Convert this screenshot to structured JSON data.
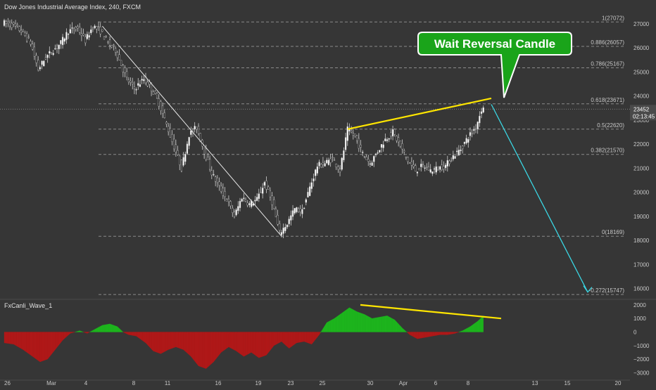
{
  "colors": {
    "background": "#363636",
    "up_candle": "#ffffff",
    "down_candle": "#1c1c1c",
    "wick": "#d0d0d0",
    "fib_line": "#8a8a8a",
    "trend_line": "#ffe600",
    "projection_arrow": "#3ad7e4",
    "callout_fill": "#1aa41a",
    "callout_text": "#ffffff",
    "oscillator_positive": "#1db51d",
    "oscillator_negative": "#b01818",
    "price_tag_bg": "#4a4a4a",
    "axis_text": "#c8c8c8"
  },
  "chart_data": [
    {
      "type": "candlestick",
      "title": "Dow Jones Industrial Average Index, 240, FXCM",
      "x_ticks": [
        "26",
        "Mar",
        "4",
        "8",
        "11",
        "16",
        "19",
        "23",
        "25",
        "30",
        "Apr",
        "6",
        "8",
        "13",
        "15",
        "20"
      ],
      "y_ticks": [
        27000,
        26000,
        25000,
        24000,
        23000,
        22000,
        21000,
        20000,
        19000,
        18000,
        17000,
        16000
      ],
      "ylim": [
        15500,
        27500
      ],
      "last_price": "23452",
      "countdown": "02:13:45",
      "fib_levels": [
        {
          "label": "1(27072)",
          "value": 27072
        },
        {
          "label": "0.886(26057)",
          "value": 26057
        },
        {
          "label": "0.786(25167)",
          "value": 25167
        },
        {
          "label": "0.618(23671)",
          "value": 23671
        },
        {
          "label": "0.5(22620)",
          "value": 22620
        },
        {
          "label": "0.382(21570)",
          "value": 21570
        },
        {
          "label": "0(18169)",
          "value": 18169
        },
        {
          "label": "-0.272(15747)",
          "value": 15747
        }
      ],
      "price_path": [
        {
          "t": 0,
          "v": 27050
        },
        {
          "t": 5,
          "v": 26950
        },
        {
          "t": 10,
          "v": 26700
        },
        {
          "t": 15,
          "v": 26200
        },
        {
          "t": 19,
          "v": 25100
        },
        {
          "t": 23,
          "v": 25600
        },
        {
          "t": 27,
          "v": 25900
        },
        {
          "t": 31,
          "v": 26200
        },
        {
          "t": 35,
          "v": 26700
        },
        {
          "t": 40,
          "v": 26800
        },
        {
          "t": 44,
          "v": 26300
        },
        {
          "t": 48,
          "v": 26900
        },
        {
          "t": 52,
          "v": 26700
        },
        {
          "t": 56,
          "v": 26200
        },
        {
          "t": 60,
          "v": 25900
        },
        {
          "t": 63,
          "v": 25300
        },
        {
          "t": 66,
          "v": 24700
        },
        {
          "t": 70,
          "v": 24300
        },
        {
          "t": 75,
          "v": 24700
        },
        {
          "t": 79,
          "v": 24300
        },
        {
          "t": 83,
          "v": 23700
        },
        {
          "t": 87,
          "v": 22800
        },
        {
          "t": 91,
          "v": 21900
        },
        {
          "t": 95,
          "v": 21000
        },
        {
          "t": 99,
          "v": 22400
        },
        {
          "t": 103,
          "v": 22700
        },
        {
          "t": 107,
          "v": 21700
        },
        {
          "t": 111,
          "v": 20800
        },
        {
          "t": 115,
          "v": 20200
        },
        {
          "t": 119,
          "v": 19700
        },
        {
          "t": 123,
          "v": 19000
        },
        {
          "t": 127,
          "v": 19800
        },
        {
          "t": 131,
          "v": 19500
        },
        {
          "t": 135,
          "v": 19700
        },
        {
          "t": 139,
          "v": 20400
        },
        {
          "t": 143,
          "v": 19600
        },
        {
          "t": 147,
          "v": 18300
        },
        {
          "t": 151,
          "v": 18700
        },
        {
          "t": 155,
          "v": 19300
        },
        {
          "t": 159,
          "v": 19200
        },
        {
          "t": 163,
          "v": 20200
        },
        {
          "t": 167,
          "v": 21100
        },
        {
          "t": 171,
          "v": 21200
        },
        {
          "t": 175,
          "v": 21400
        },
        {
          "t": 179,
          "v": 20900
        },
        {
          "t": 183,
          "v": 22600
        },
        {
          "t": 187,
          "v": 22300
        },
        {
          "t": 191,
          "v": 21600
        },
        {
          "t": 195,
          "v": 21200
        },
        {
          "t": 199,
          "v": 21700
        },
        {
          "t": 203,
          "v": 22200
        },
        {
          "t": 207,
          "v": 22500
        },
        {
          "t": 211,
          "v": 21900
        },
        {
          "t": 215,
          "v": 21300
        },
        {
          "t": 219,
          "v": 20900
        },
        {
          "t": 223,
          "v": 21100
        },
        {
          "t": 227,
          "v": 20900
        },
        {
          "t": 231,
          "v": 21000
        },
        {
          "t": 235,
          "v": 21100
        },
        {
          "t": 239,
          "v": 21500
        },
        {
          "t": 243,
          "v": 21800
        },
        {
          "t": 247,
          "v": 22300
        },
        {
          "t": 251,
          "v": 22700
        },
        {
          "t": 254,
          "v": 23450
        }
      ],
      "annotations": {
        "callout": "Wait Reversal Candle"
      }
    },
    {
      "type": "area",
      "title": "FxCanli_Wave_1",
      "y_ticks": [
        2000,
        1000,
        0,
        -1000,
        -2000,
        -3000
      ],
      "ylim": [
        -3200,
        2200
      ],
      "values": [
        {
          "t": 0,
          "v": -800
        },
        {
          "t": 5,
          "v": -900
        },
        {
          "t": 10,
          "v": -1300
        },
        {
          "t": 15,
          "v": -1800
        },
        {
          "t": 19,
          "v": -2200
        },
        {
          "t": 23,
          "v": -2000
        },
        {
          "t": 27,
          "v": -1300
        },
        {
          "t": 31,
          "v": -600
        },
        {
          "t": 35,
          "v": -100
        },
        {
          "t": 40,
          "v": 100
        },
        {
          "t": 44,
          "v": -100
        },
        {
          "t": 48,
          "v": 200
        },
        {
          "t": 52,
          "v": 500
        },
        {
          "t": 56,
          "v": 600
        },
        {
          "t": 60,
          "v": 400
        },
        {
          "t": 63,
          "v": 0
        },
        {
          "t": 66,
          "v": -200
        },
        {
          "t": 70,
          "v": -300
        },
        {
          "t": 75,
          "v": -800
        },
        {
          "t": 79,
          "v": -1400
        },
        {
          "t": 83,
          "v": -1600
        },
        {
          "t": 87,
          "v": -1300
        },
        {
          "t": 91,
          "v": -1100
        },
        {
          "t": 95,
          "v": -1300
        },
        {
          "t": 99,
          "v": -1800
        },
        {
          "t": 103,
          "v": -2500
        },
        {
          "t": 107,
          "v": -2700
        },
        {
          "t": 111,
          "v": -2200
        },
        {
          "t": 115,
          "v": -1500
        },
        {
          "t": 119,
          "v": -1100
        },
        {
          "t": 123,
          "v": -1400
        },
        {
          "t": 127,
          "v": -1800
        },
        {
          "t": 131,
          "v": -1500
        },
        {
          "t": 135,
          "v": -1900
        },
        {
          "t": 139,
          "v": -1700
        },
        {
          "t": 143,
          "v": -1000
        },
        {
          "t": 147,
          "v": -700
        },
        {
          "t": 151,
          "v": -1200
        },
        {
          "t": 155,
          "v": -800
        },
        {
          "t": 159,
          "v": -700
        },
        {
          "t": 163,
          "v": -900
        },
        {
          "t": 167,
          "v": -200
        },
        {
          "t": 171,
          "v": 700
        },
        {
          "t": 175,
          "v": 1000
        },
        {
          "t": 179,
          "v": 1400
        },
        {
          "t": 183,
          "v": 1800
        },
        {
          "t": 187,
          "v": 1500
        },
        {
          "t": 191,
          "v": 1300
        },
        {
          "t": 195,
          "v": 1000
        },
        {
          "t": 199,
          "v": 1100
        },
        {
          "t": 203,
          "v": 1200
        },
        {
          "t": 207,
          "v": 900
        },
        {
          "t": 211,
          "v": 300
        },
        {
          "t": 215,
          "v": -200
        },
        {
          "t": 219,
          "v": -500
        },
        {
          "t": 223,
          "v": -400
        },
        {
          "t": 227,
          "v": -300
        },
        {
          "t": 231,
          "v": -200
        },
        {
          "t": 235,
          "v": -200
        },
        {
          "t": 239,
          "v": -100
        },
        {
          "t": 243,
          "v": 100
        },
        {
          "t": 247,
          "v": 400
        },
        {
          "t": 251,
          "v": 800
        },
        {
          "t": 254,
          "v": 1200
        }
      ]
    }
  ]
}
